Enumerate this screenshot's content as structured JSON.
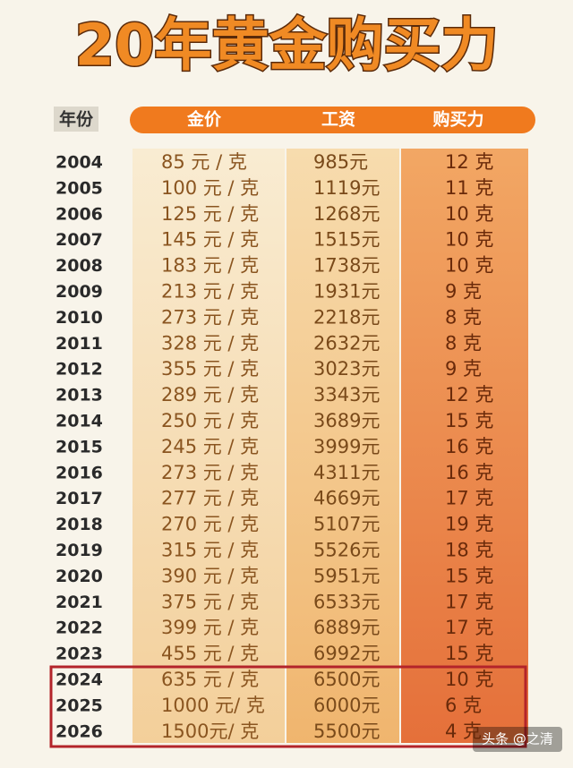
{
  "title": "20年黄金购买力",
  "table": {
    "header": [
      "年份",
      "金价",
      "工资",
      "购买力"
    ],
    "rows": [
      [
        "2004",
        "85 元 / 克",
        "985元",
        "12 克"
      ],
      [
        "2005",
        "100 元 / 克",
        "1119元",
        "11 克"
      ],
      [
        "2006",
        "125 元 / 克",
        "1268元",
        "10 克"
      ],
      [
        "2007",
        "145 元 / 克",
        "1515元",
        "10 克"
      ],
      [
        "2008",
        "183 元 / 克",
        "1738元",
        "10 克"
      ],
      [
        "2009",
        "213 元 / 克",
        "1931元",
        "9 克"
      ],
      [
        "2010",
        "273 元 / 克",
        "2218元",
        "8 克"
      ],
      [
        "2011",
        "328 元 / 克",
        "2632元",
        "8 克"
      ],
      [
        "2012",
        "355 元 / 克",
        "3023元",
        "9 克"
      ],
      [
        "2013",
        "289 元 / 克",
        "3343元",
        "12 克"
      ],
      [
        "2014",
        "250 元 / 克",
        "3689元",
        "15 克"
      ],
      [
        "2015",
        "245 元 / 克",
        "3999元",
        "16 克"
      ],
      [
        "2016",
        "273 元 / 克",
        "4311元",
        "16 克"
      ],
      [
        "2017",
        "277 元 / 克",
        "4669元",
        "17 克"
      ],
      [
        "2018",
        "270 元 / 克",
        "5107元",
        "19 克"
      ],
      [
        "2019",
        "315 元 / 克",
        "5526元",
        "18 克"
      ],
      [
        "2020",
        "390 元 / 克",
        "5951元",
        "15 克"
      ],
      [
        "2021",
        "375 元 / 克",
        "6533元",
        "17 克"
      ],
      [
        "2022",
        "399 元 / 克",
        "6889元",
        "17 克"
      ],
      [
        "2023",
        "455 元 / 克",
        "6992元",
        "15 克"
      ],
      [
        "2024",
        "635 元 / 克",
        "6500元",
        "10 克"
      ],
      [
        "2025",
        "1000 元/ 克",
        "6000元",
        "6 克"
      ],
      [
        "2026",
        "1500元/ 克",
        "5500元",
        "4 克"
      ]
    ]
  },
  "watermark": "头条 @之清"
}
